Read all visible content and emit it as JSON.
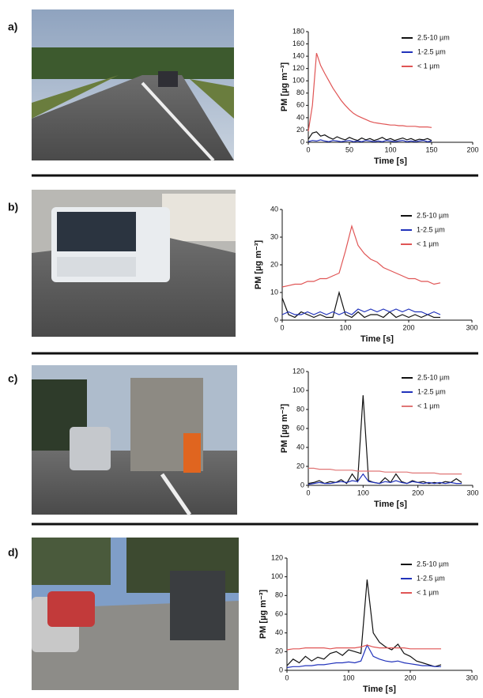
{
  "chart_data": [
    {
      "type": "line",
      "panel": "a)",
      "y_label": "PM [µg m⁻³]",
      "x_label": "Time [s]",
      "x": [
        0,
        5,
        10,
        15,
        20,
        25,
        30,
        35,
        40,
        45,
        50,
        55,
        60,
        65,
        70,
        75,
        80,
        85,
        90,
        95,
        100,
        105,
        110,
        115,
        120,
        125,
        130,
        135,
        140,
        145,
        150
      ],
      "xlim": [
        0,
        200
      ],
      "xticks": [
        0,
        50,
        100,
        150,
        200
      ],
      "ylim": [
        0,
        180
      ],
      "yticks": [
        0,
        20,
        40,
        60,
        80,
        100,
        120,
        140,
        160,
        180
      ],
      "series": [
        {
          "name": "2.5-10 µm",
          "color": "#111111",
          "values": [
            5,
            15,
            17,
            10,
            12,
            8,
            5,
            9,
            6,
            4,
            8,
            5,
            3,
            7,
            4,
            6,
            3,
            5,
            8,
            4,
            6,
            3,
            5,
            7,
            4,
            6,
            3,
            5,
            4,
            6,
            3
          ]
        },
        {
          "name": "1-2.5 µm",
          "color": "#2233bb",
          "values": [
            1,
            3,
            2,
            4,
            2,
            1,
            3,
            2,
            1,
            2,
            3,
            1,
            2,
            1,
            3,
            2,
            1,
            2,
            1,
            3,
            2,
            1,
            2,
            3,
            1,
            2,
            1,
            2,
            3,
            1,
            2
          ]
        },
        {
          "name": "< 1 µm",
          "color": "#e05555",
          "values": [
            18,
            60,
            145,
            125,
            112,
            100,
            88,
            78,
            68,
            60,
            53,
            47,
            43,
            40,
            37,
            34,
            32,
            31,
            30,
            29,
            28,
            28,
            27,
            27,
            26,
            26,
            26,
            25,
            25,
            25,
            24
          ]
        }
      ]
    },
    {
      "type": "line",
      "panel": "b)",
      "y_label": "PM [µg m⁻³]",
      "x_label": "Time [s]",
      "x": [
        0,
        10,
        20,
        30,
        40,
        50,
        60,
        70,
        80,
        90,
        100,
        110,
        120,
        130,
        140,
        150,
        160,
        170,
        180,
        190,
        200,
        210,
        220,
        230,
        240,
        250
      ],
      "xlim": [
        0,
        300
      ],
      "xticks": [
        0,
        100,
        200,
        300
      ],
      "ylim": [
        0,
        40
      ],
      "yticks": [
        0,
        10,
        20,
        30,
        40
      ],
      "series": [
        {
          "name": "2.5-10 µm",
          "color": "#111111",
          "values": [
            8,
            2,
            1,
            3,
            2,
            1,
            2,
            1,
            1,
            10,
            2,
            1,
            3,
            1,
            2,
            2,
            1,
            3,
            1,
            2,
            1,
            2,
            1,
            2,
            1,
            1
          ]
        },
        {
          "name": "1-2.5 µm",
          "color": "#2233bb",
          "values": [
            2,
            3,
            2,
            2,
            3,
            2,
            3,
            2,
            3,
            2,
            3,
            2,
            4,
            3,
            4,
            3,
            4,
            3,
            4,
            3,
            4,
            3,
            3,
            2,
            3,
            2
          ]
        },
        {
          "name": "< 1 µm",
          "color": "#e05555",
          "values": [
            12,
            12.5,
            13,
            13,
            14,
            14,
            15,
            15,
            16,
            17,
            25,
            34,
            27,
            24,
            22,
            21,
            19,
            18,
            17,
            16,
            15,
            15,
            14,
            14,
            13,
            13.5
          ]
        }
      ]
    },
    {
      "type": "line",
      "panel": "c)",
      "y_label": "PM [µg m⁻³]",
      "x_label": "Time [s]",
      "x": [
        0,
        10,
        20,
        30,
        40,
        50,
        60,
        70,
        80,
        90,
        100,
        110,
        120,
        130,
        140,
        150,
        160,
        170,
        180,
        190,
        200,
        210,
        220,
        230,
        240,
        250,
        260,
        270,
        280
      ],
      "xlim": [
        0,
        300
      ],
      "xticks": [
        0,
        100,
        200,
        300
      ],
      "ylim": [
        0,
        120
      ],
      "yticks": [
        0,
        20,
        40,
        60,
        80,
        100,
        120
      ],
      "series": [
        {
          "name": "2.5-10 µm",
          "color": "#111111",
          "values": [
            2,
            3,
            5,
            2,
            4,
            3,
            6,
            2,
            12,
            4,
            95,
            5,
            3,
            2,
            8,
            3,
            12,
            4,
            2,
            5,
            3,
            4,
            2,
            3,
            2,
            4,
            3,
            7,
            3
          ]
        },
        {
          "name": "1-2.5 µm",
          "color": "#2233bb",
          "values": [
            1,
            2,
            3,
            2,
            2,
            3,
            4,
            3,
            5,
            4,
            12,
            4,
            3,
            2,
            4,
            3,
            5,
            3,
            2,
            4,
            3,
            2,
            3,
            2,
            3,
            2,
            3,
            2,
            2
          ]
        },
        {
          "name": "< 1 µm",
          "color": "#e07777",
          "values": [
            18,
            18,
            17,
            17,
            17,
            16,
            16,
            16,
            16,
            15,
            15,
            15,
            15,
            15,
            14,
            14,
            14,
            14,
            14,
            13,
            13,
            13,
            13,
            13,
            12,
            12,
            12,
            12,
            12
          ]
        }
      ]
    },
    {
      "type": "line",
      "panel": "d)",
      "y_label": "PM [µg m⁻³]",
      "x_label": "Time [s]",
      "x": [
        0,
        10,
        20,
        30,
        40,
        50,
        60,
        70,
        80,
        90,
        100,
        110,
        120,
        130,
        140,
        150,
        160,
        170,
        180,
        190,
        200,
        210,
        220,
        230,
        240,
        250
      ],
      "xlim": [
        0,
        300
      ],
      "xticks": [
        0,
        100,
        200,
        300
      ],
      "ylim": [
        0,
        120
      ],
      "yticks": [
        0,
        20,
        40,
        60,
        80,
        100,
        120
      ],
      "series": [
        {
          "name": "2.5-10 µm",
          "color": "#111111",
          "values": [
            5,
            12,
            8,
            15,
            10,
            14,
            12,
            18,
            20,
            16,
            22,
            20,
            18,
            97,
            40,
            30,
            25,
            22,
            28,
            18,
            15,
            10,
            8,
            6,
            4,
            6
          ]
        },
        {
          "name": "1-2.5 µm",
          "color": "#2233bb",
          "values": [
            3,
            4,
            4,
            5,
            5,
            6,
            6,
            7,
            8,
            8,
            9,
            8,
            10,
            27,
            15,
            12,
            10,
            9,
            10,
            8,
            7,
            6,
            5,
            5,
            4,
            4
          ]
        },
        {
          "name": "< 1 µm",
          "color": "#e05555",
          "values": [
            22,
            23,
            23,
            24,
            24,
            24,
            24,
            23,
            24,
            24,
            24,
            24,
            25,
            27,
            25,
            24,
            24,
            24,
            24,
            24,
            23,
            23,
            23,
            23,
            23,
            23
          ]
        }
      ]
    }
  ]
}
